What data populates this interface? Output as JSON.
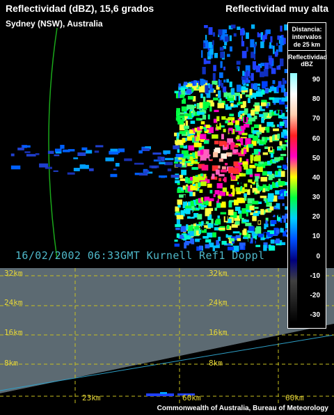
{
  "header": {
    "title": "Reflectividad (dBZ), 15,6 grados",
    "subtitle": "Sydney (NSW), Australia",
    "title_right": "Reflectividad muy alta"
  },
  "radar": {
    "timestamp": "16/02/2002 06:33GMT Kurnell Ref1 Doppl"
  },
  "legend": {
    "distance_label": "Distancia: intervalos de 25 km",
    "unit_label": "Reflectividad dBZ",
    "ticks": [
      "90",
      "80",
      "70",
      "60",
      "50",
      "40",
      "30",
      "20",
      "10",
      "0",
      "-10",
      "-20",
      "-30"
    ],
    "colors": [
      "#8ffcff",
      "#ffffff",
      "#ffd0b0",
      "#ff2020",
      "#ff00c0",
      "#ffff00",
      "#00ff40",
      "#00d0ff",
      "#0050ff",
      "#000080",
      "#404040",
      "#202020",
      "#000000"
    ]
  },
  "cross_section": {
    "height_labels": [
      "32km",
      "24km",
      "16km",
      "8km"
    ],
    "height_labels_right": [
      "32km",
      "24km",
      "16km",
      "8km"
    ],
    "distance_labels": [
      "23km",
      "60km"
    ],
    "distance_label_right": "60km"
  },
  "footer": {
    "credit": "Commonwealth of Australia, Bureau of Meteorology"
  }
}
